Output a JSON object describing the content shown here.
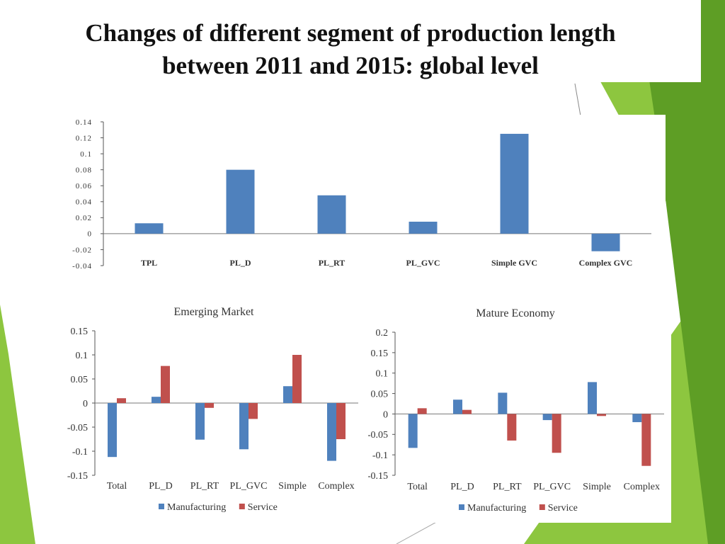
{
  "slide": {
    "title_line1": "Changes of different segment of production length",
    "title_line2": "between 2011 and 2015: global level"
  },
  "colors": {
    "manufacturing": "#4f81bd",
    "service": "#c0504d",
    "accent_green": "#8dc63f",
    "dark_green": "#5e9e25"
  },
  "chart_data": [
    {
      "id": "global",
      "type": "bar",
      "title": "",
      "categories": [
        "TPL",
        "PL_D",
        "PL_RT",
        "PL_GVC",
        "Simple GVC",
        "Complex GVC"
      ],
      "series": [
        {
          "values": [
            0.013,
            0.08,
            0.048,
            0.015,
            0.125,
            -0.022
          ]
        }
      ],
      "ylim": [
        -0.04,
        0.14
      ],
      "yticks": [
        0.14,
        0.12,
        0.1,
        0.08,
        0.06,
        0.04,
        0.02,
        0,
        -0.02,
        -0.04
      ],
      "ytick_labels": [
        "0.14",
        "0.12",
        "0.1",
        "0.08",
        "0.06",
        "0.04",
        "0.02",
        "0",
        "-0.02",
        "-0.04"
      ],
      "legend": "none",
      "grid": false
    },
    {
      "id": "emerging",
      "type": "bar",
      "title": "Emerging Market",
      "categories": [
        "Total",
        "PL_D",
        "PL_RT",
        "PL_GVC",
        "Simple",
        "Complex"
      ],
      "series": [
        {
          "name": "Manufacturing",
          "values": [
            -0.112,
            0.013,
            -0.076,
            -0.096,
            0.035,
            -0.12
          ]
        },
        {
          "name": "Service",
          "values": [
            0.01,
            0.077,
            -0.01,
            -0.033,
            0.1,
            -0.075
          ]
        }
      ],
      "ylim": [
        -0.15,
        0.15
      ],
      "yticks": [
        0.15,
        0.1,
        0.05,
        0,
        -0.05,
        -0.1,
        -0.15
      ],
      "ytick_labels": [
        "0.15",
        "0.1",
        "0.05",
        "0",
        "-0.05",
        "-0.1",
        "-0.15"
      ],
      "legend": "bottom",
      "grid": false
    },
    {
      "id": "mature",
      "type": "bar",
      "title": "Mature Economy",
      "categories": [
        "Total",
        "PL_D",
        "PL_RT",
        "PL_GVC",
        "Simple",
        "Complex"
      ],
      "series": [
        {
          "name": "Manufacturing",
          "values": [
            -0.083,
            0.035,
            0.052,
            -0.015,
            0.078,
            -0.02
          ]
        },
        {
          "name": "Service",
          "values": [
            0.014,
            0.01,
            -0.065,
            -0.095,
            -0.005,
            -0.127
          ]
        }
      ],
      "ylim": [
        -0.15,
        0.2
      ],
      "yticks": [
        0.2,
        0.15,
        0.1,
        0.05,
        0,
        -0.05,
        -0.1,
        -0.15
      ],
      "ytick_labels": [
        "0.2",
        "0.15",
        "0.1",
        "0.05",
        "0",
        "-0.05",
        "-0.1",
        "-0.15"
      ],
      "legend": "bottom",
      "grid": false
    }
  ]
}
